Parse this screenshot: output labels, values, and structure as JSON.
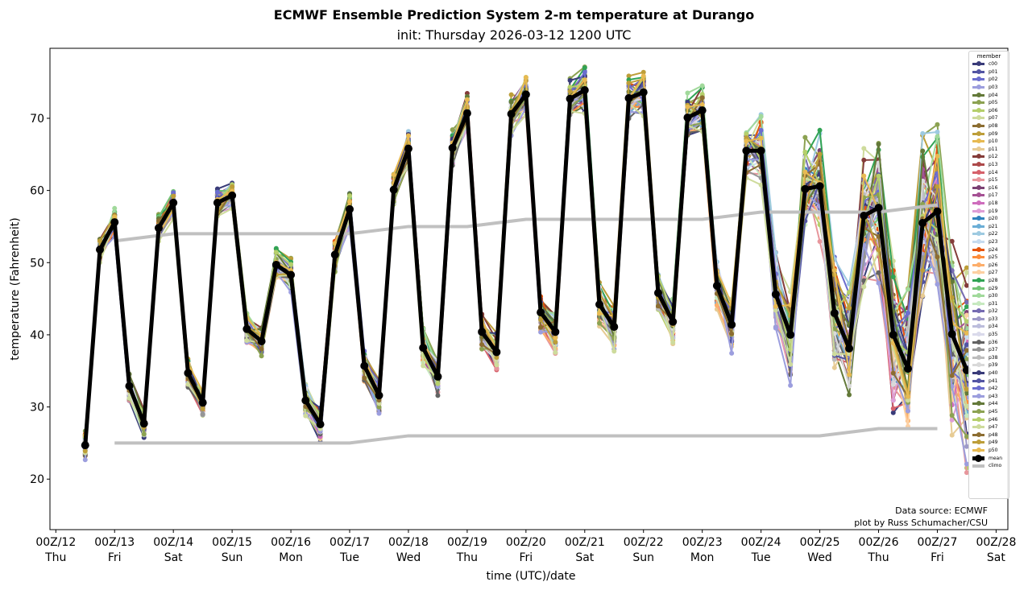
{
  "title": "ECMWF Ensemble Prediction System 2-m temperature at Durango",
  "subtitle": "init: Thursday 2026-03-12 1200 UTC",
  "credits": [
    "Data source: ECMWF",
    "plot by Russ Schumacher/CSU"
  ],
  "chart_data": {
    "type": "line",
    "title": "ECMWF Ensemble Prediction System 2-m temperature at Durango",
    "subtitle": "init: Thursday 2026-03-12 1200 UTC",
    "xlabel": "time (UTC)/date",
    "ylabel": "temperature (Fahrenheit)",
    "ylim": [
      13,
      79.7
    ],
    "xlim_days": [
      11.9,
      28.2
    ],
    "yticks": [
      20,
      30,
      40,
      50,
      60,
      70
    ],
    "xticks": [
      {
        "day": 12,
        "label": "00Z/12",
        "dow": "Thu"
      },
      {
        "day": 13,
        "label": "00Z/13",
        "dow": "Fri"
      },
      {
        "day": 14,
        "label": "00Z/14",
        "dow": "Sat"
      },
      {
        "day": 15,
        "label": "00Z/15",
        "dow": "Sun"
      },
      {
        "day": 16,
        "label": "00Z/16",
        "dow": "Mon"
      },
      {
        "day": 17,
        "label": "00Z/17",
        "dow": "Tue"
      },
      {
        "day": 18,
        "label": "00Z/18",
        "dow": "Wed"
      },
      {
        "day": 19,
        "label": "00Z/19",
        "dow": "Thu"
      },
      {
        "day": 20,
        "label": "00Z/20",
        "dow": "Fri"
      },
      {
        "day": 21,
        "label": "00Z/21",
        "dow": "Sat"
      },
      {
        "day": 22,
        "label": "00Z/22",
        "dow": "Sun"
      },
      {
        "day": 23,
        "label": "00Z/23",
        "dow": "Mon"
      },
      {
        "day": 24,
        "label": "00Z/24",
        "dow": "Tue"
      },
      {
        "day": 25,
        "label": "00Z/25",
        "dow": "Wed"
      },
      {
        "day": 26,
        "label": "00Z/26",
        "dow": "Thu"
      },
      {
        "day": 27,
        "label": "00Z/27",
        "dow": "Fri"
      },
      {
        "day": 28,
        "label": "00Z/28",
        "dow": "Sat"
      }
    ],
    "grid": false,
    "legend_title": "member",
    "legend_position": "right",
    "time_start_day": 12.5,
    "time_step_hours": 6,
    "mean": [
      24.7,
      51.8,
      55.6,
      32.9,
      27.7,
      54.8,
      58.3,
      34.7,
      30.6,
      58.3,
      59.3,
      40.8,
      39.1,
      49.7,
      48.3,
      30.9,
      27.6,
      51.1,
      57.4,
      35.7,
      31.6,
      60.1,
      65.8,
      38.2,
      34.2,
      65.9,
      70.7,
      40.4,
      37.6,
      70.6,
      73.3,
      43.1,
      40.4,
      72.7,
      73.9,
      44.2,
      41.1,
      72.8,
      73.6,
      45.8,
      41.8,
      70.1,
      71.1,
      46.8,
      41.4,
      65.5,
      65.5,
      45.6,
      40.0,
      60.2,
      60.6,
      43.0,
      38.1,
      56.5,
      57.6,
      40.0,
      35.3,
      55.5,
      57.1,
      40.1,
      35.1
    ],
    "climo_upper": {
      "days": [
        13,
        14,
        15,
        16,
        17,
        18,
        19,
        20,
        21,
        22,
        23,
        24,
        25,
        26,
        27
      ],
      "values": [
        53,
        54,
        54,
        54,
        54,
        55,
        55,
        56,
        56,
        56,
        56,
        57,
        57,
        57,
        58
      ]
    },
    "climo_lower": {
      "days": [
        13,
        14,
        15,
        16,
        17,
        18,
        19,
        20,
        21,
        22,
        23,
        24,
        25,
        26,
        27
      ],
      "values": [
        25,
        25,
        25,
        25,
        25,
        26,
        26,
        26,
        26,
        26,
        26,
        26,
        26,
        27,
        27
      ]
    },
    "members": [
      {
        "name": "c00",
        "color": "#393b79"
      },
      {
        "name": "p01",
        "color": "#5254a3"
      },
      {
        "name": "p02",
        "color": "#6b6ecf"
      },
      {
        "name": "p03",
        "color": "#9c9ede"
      },
      {
        "name": "p04",
        "color": "#637939"
      },
      {
        "name": "p05",
        "color": "#8ca252"
      },
      {
        "name": "p06",
        "color": "#b5cf6b"
      },
      {
        "name": "p07",
        "color": "#cedb9c"
      },
      {
        "name": "p08",
        "color": "#8c6d31"
      },
      {
        "name": "p09",
        "color": "#bd9e39"
      },
      {
        "name": "p10",
        "color": "#e7ba52"
      },
      {
        "name": "p11",
        "color": "#e7cb94"
      },
      {
        "name": "p12",
        "color": "#843c39"
      },
      {
        "name": "p13",
        "color": "#ad494a"
      },
      {
        "name": "p14",
        "color": "#d6616b"
      },
      {
        "name": "p15",
        "color": "#e7969c"
      },
      {
        "name": "p16",
        "color": "#7b4173"
      },
      {
        "name": "p17",
        "color": "#a55194"
      },
      {
        "name": "p18",
        "color": "#ce6dbd"
      },
      {
        "name": "p19",
        "color": "#de9ed6"
      },
      {
        "name": "p20",
        "color": "#3182bd"
      },
      {
        "name": "p21",
        "color": "#6baed6"
      },
      {
        "name": "p22",
        "color": "#9ecae1"
      },
      {
        "name": "p23",
        "color": "#c6dbef"
      },
      {
        "name": "p24",
        "color": "#e6550d"
      },
      {
        "name": "p25",
        "color": "#fd8d3c"
      },
      {
        "name": "p26",
        "color": "#fdae6b"
      },
      {
        "name": "p27",
        "color": "#fdd0a2"
      },
      {
        "name": "p28",
        "color": "#31a354"
      },
      {
        "name": "p29",
        "color": "#74c476"
      },
      {
        "name": "p30",
        "color": "#a1d99b"
      },
      {
        "name": "p31",
        "color": "#c7e9c0"
      },
      {
        "name": "p32",
        "color": "#756bb1"
      },
      {
        "name": "p33",
        "color": "#9e9ac8"
      },
      {
        "name": "p34",
        "color": "#bcbddc"
      },
      {
        "name": "p35",
        "color": "#dadaeb"
      },
      {
        "name": "p36",
        "color": "#636363"
      },
      {
        "name": "p37",
        "color": "#969696"
      },
      {
        "name": "p38",
        "color": "#bdbdbd"
      },
      {
        "name": "p39",
        "color": "#d9d9d9"
      },
      {
        "name": "p40",
        "color": "#393b79"
      },
      {
        "name": "p41",
        "color": "#5254a3"
      },
      {
        "name": "p42",
        "color": "#6b6ecf"
      },
      {
        "name": "p43",
        "color": "#9c9ede"
      },
      {
        "name": "p44",
        "color": "#637939"
      },
      {
        "name": "p45",
        "color": "#8ca252"
      },
      {
        "name": "p46",
        "color": "#b5cf6b"
      },
      {
        "name": "p47",
        "color": "#cedb9c"
      },
      {
        "name": "p48",
        "color": "#8c6d31"
      },
      {
        "name": "p49",
        "color": "#bd9e39"
      },
      {
        "name": "p50",
        "color": "#e7ba52"
      }
    ],
    "mean_style": {
      "name": "mean",
      "color": "#000000"
    },
    "climo_style": {
      "name": "climo",
      "color": "#c0c0c0"
    },
    "member_spread_note": "members scatter around the mean; spread grows from ~2F early to ~12F by day 24-27"
  }
}
